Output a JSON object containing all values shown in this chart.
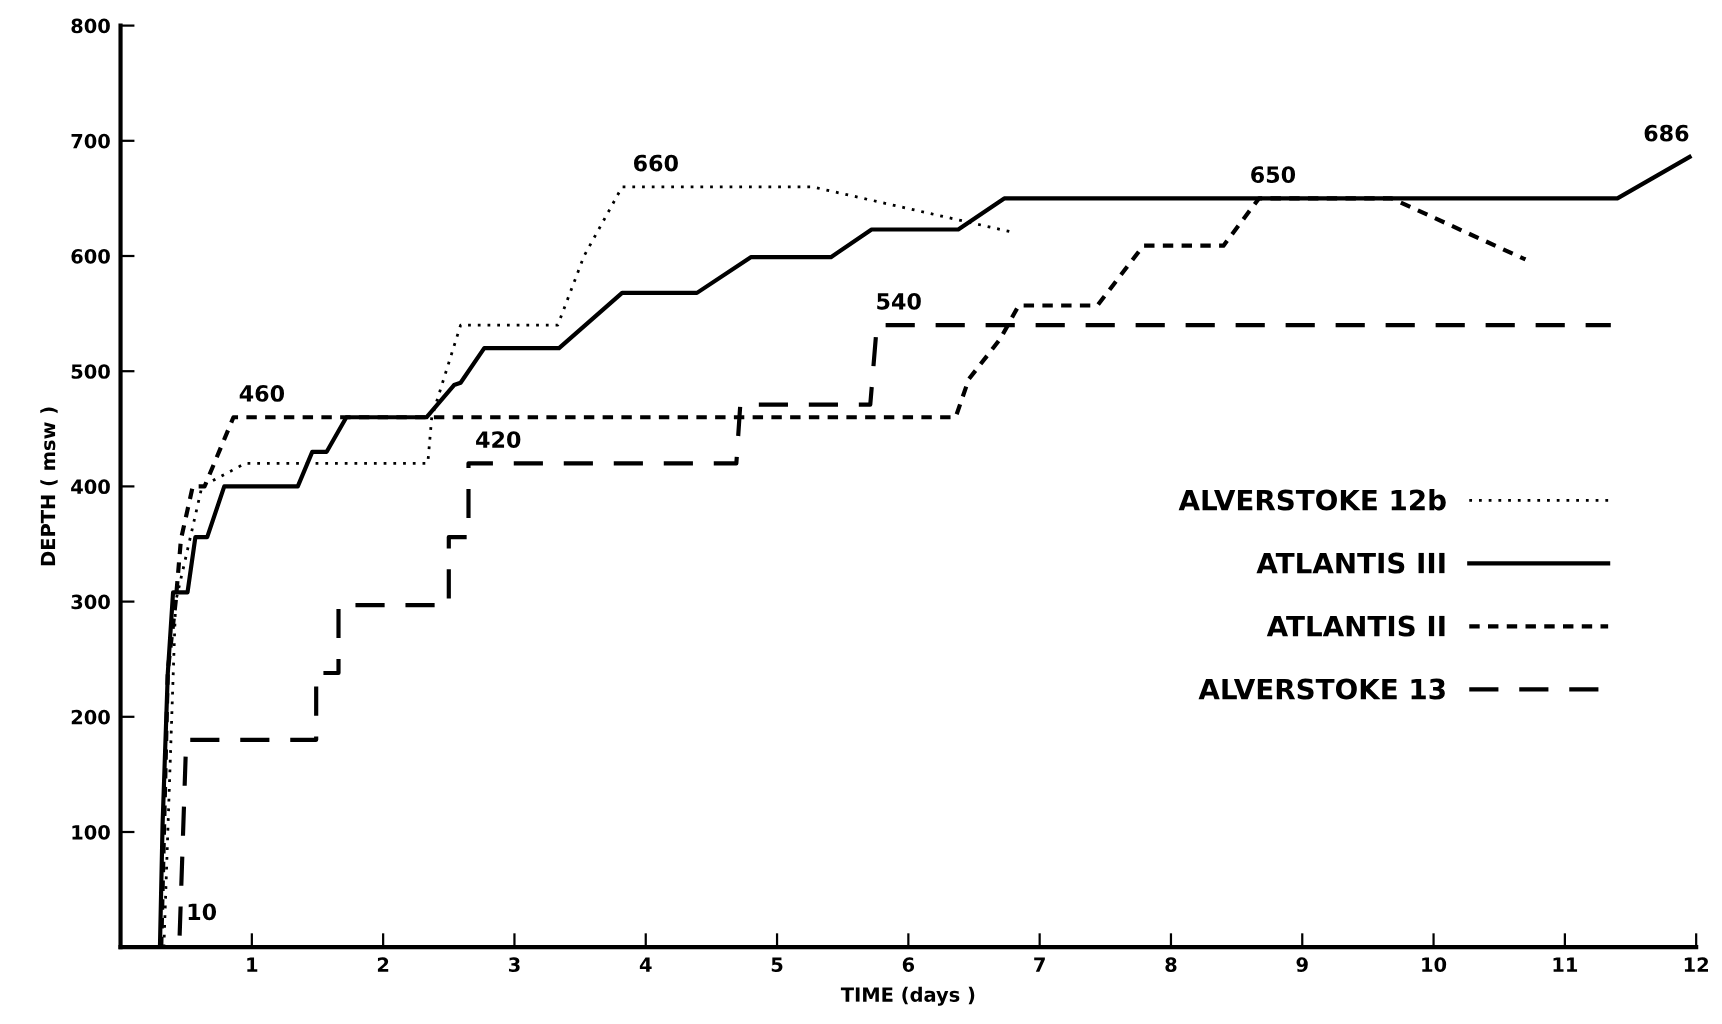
{
  "chart_data": {
    "type": "line",
    "xlabel": "TIME (days )",
    "ylabel": "DEPTH ( msw )",
    "xlim": [
      0,
      12
    ],
    "xticks": [
      {
        "value": 0,
        "label": null
      },
      1,
      2,
      3,
      4,
      5,
      6,
      7,
      8,
      9,
      10,
      11,
      12
    ],
    "ylim": [
      0,
      800
    ],
    "yticks": [
      {
        "value": 0,
        "label": null
      },
      100,
      200,
      300,
      400,
      500,
      600,
      700,
      800
    ],
    "grid": false,
    "legend": "right",
    "marker": "none",
    "series": [
      {
        "name": "ALVERSTOKE 12b",
        "color": "#000000",
        "line_style": "dotted",
        "x": [
          0.33,
          0.42,
          0.62,
          0.95,
          2.34,
          2.37,
          2.59,
          3.33,
          3.53,
          3.82,
          5.27,
          6.82
        ],
        "values": [
          0,
          300,
          400,
          420,
          420,
          460,
          540,
          540,
          600,
          660,
          660,
          620
        ]
      },
      {
        "name": "ATLANTIS III",
        "color": "#000000",
        "line_style": "solid",
        "x": [
          0.3,
          0.32,
          0.36,
          0.4,
          0.51,
          0.57,
          0.66,
          0.79,
          1.35,
          1.46,
          1.57,
          1.72,
          2.33,
          2.54,
          2.59,
          2.77,
          3.34,
          3.82,
          4.39,
          4.8,
          5.41,
          5.72,
          6.38,
          6.73,
          11.4,
          11.95
        ],
        "values": [
          0,
          106,
          238,
          308,
          308,
          356,
          356,
          400,
          400,
          430,
          430,
          460,
          460,
          488,
          490,
          520,
          520,
          568,
          568,
          599,
          599,
          623,
          623,
          650,
          650,
          686
        ]
      },
      {
        "name": "ATLANTIS II",
        "color": "#000000",
        "line_style": "dashed",
        "x": [
          0.31,
          0.36,
          0.42,
          0.46,
          0.55,
          0.64,
          0.86,
          6.36,
          6.46,
          6.7,
          6.84,
          7.44,
          7.79,
          8.4,
          8.67,
          9.68,
          10.7
        ],
        "values": [
          0,
          240,
          300,
          354,
          400,
          400,
          460,
          460,
          493,
          528,
          557,
          557,
          609,
          609,
          650,
          650,
          597
        ]
      },
      {
        "name": "ALVERSTOKE 13",
        "color": "#000000",
        "line_style": "dashed",
        "x": [
          0.45,
          0.5,
          1.49,
          1.49,
          1.66,
          1.66,
          2.5,
          2.5,
          2.65,
          2.65,
          4.69,
          4.72,
          5.71,
          5.76,
          11.35
        ],
        "values": [
          10,
          180,
          180,
          238,
          238,
          297,
          297,
          356,
          356,
          420,
          420,
          471,
          471,
          540,
          540
        ]
      }
    ],
    "annotations": [
      {
        "text": "460",
        "x": 0.9,
        "y": 460
      },
      {
        "text": "660",
        "x": 3.9,
        "y": 660
      },
      {
        "text": "420",
        "x": 2.7,
        "y": 420
      },
      {
        "text": "540",
        "x": 5.75,
        "y": 540
      },
      {
        "text": "650",
        "x": 8.6,
        "y": 650
      },
      {
        "text": "686",
        "x": 11.95,
        "y": 686
      },
      {
        "text": "10",
        "x": 0.5,
        "y": 10
      }
    ]
  }
}
